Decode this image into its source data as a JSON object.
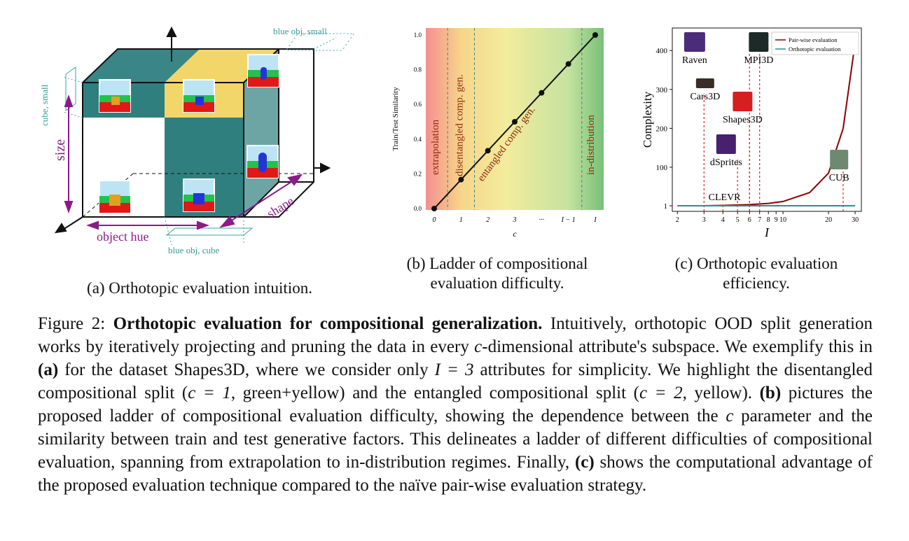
{
  "panel_a": {
    "caption": "(a) Orthotopic evaluation intuition.",
    "labels": {
      "blue_obj_small": "blue obj, small",
      "cube_small": "cube, small",
      "size": "size",
      "object_hue": "object hue",
      "shape": "shape",
      "blue_obj_cube": "blue obj, cube"
    }
  },
  "panel_b": {
    "caption_line1": "(b) Ladder of compositional",
    "caption_line2": "evaluation difficulty.",
    "regions": {
      "extrapolation": "extrapolation",
      "disentangled": "disentangled comp. gen.",
      "entangled": "entangled comp. gen.",
      "in_distribution": "in-distribution"
    }
  },
  "panel_c": {
    "caption_line1": "(c) Orthotopic evaluation",
    "caption_line2": "efficiency.",
    "datasets": [
      "Raven",
      "MPI3D",
      "Cars3D",
      "Shapes3D",
      "dSprites",
      "CLEVR",
      "CUB"
    ]
  },
  "caption": {
    "prefix": "Figure 2: ",
    "title": "Orthotopic evaluation for compositional generalization.",
    "s1": " Intuitively, orthotopic OOD split generation works by iteratively projecting and pruning the data in every ",
    "c1": "c",
    "s2": "-dimensional attribute's subspace. We exemplify this in ",
    "ref_a": "(a)",
    "s3": " for the dataset Shapes3D, where we consider only ",
    "eq1": "I = 3",
    "s4": " attributes for simplicity. We highlight the disentangled compositional split (",
    "eq2": "c = 1",
    "s5": ", green+yellow) and the entangled compositional split (",
    "eq3": "c = 2",
    "s6": ", yellow). ",
    "ref_b": "(b)",
    "s7": " pictures the proposed ladder of compositional evaluation difficulty, showing the dependence between the ",
    "c2": "c",
    "s8": " parameter and the similarity between train and test generative factors. This delineates a ladder of different difficulties of compositional evaluation, spanning from extrapolation to in-distribution regimes. Finally, ",
    "ref_c": "(c)",
    "s9": " shows the computational advantage of the proposed evaluation technique compared to the naïve pair-wise evaluation strategy."
  },
  "chart_data": [
    {
      "id": "ladder",
      "type": "line",
      "xlabel": "c",
      "ylabel": "Train/Test Similarity",
      "x_ticks": [
        "0",
        "1",
        "2",
        "3",
        "···",
        "I − 1",
        "I"
      ],
      "y_ticks": [
        "0.0",
        "0.2",
        "0.4",
        "0.6",
        "0.8",
        "1.0"
      ],
      "ylim": [
        0,
        1
      ],
      "series": [
        {
          "values": [
            0.0,
            0.1667,
            0.3333,
            0.5,
            0.6667,
            0.8333,
            1.0
          ]
        }
      ],
      "background": "gradient red-yellow-green",
      "vlines": [
        0.5,
        1.5,
        5.5
      ]
    },
    {
      "id": "efficiency",
      "type": "line",
      "xlabel": "I",
      "ylabel": "Complexity",
      "x_ticks": [
        "2",
        "3",
        "4",
        "5",
        "6",
        "7",
        "8",
        "9",
        "10",
        "20",
        "30"
      ],
      "y_ticks": [
        "1",
        "100",
        "200",
        "300",
        "400"
      ],
      "legend": "top-right",
      "series": [
        {
          "name": "Pair-wise evaluation",
          "color": "#8b0000",
          "x": [
            2,
            3,
            4,
            5,
            6,
            8,
            10,
            15,
            20,
            25,
            30
          ],
          "y": [
            1,
            1,
            2,
            3,
            4,
            7,
            12,
            35,
            85,
            200,
            420
          ]
        },
        {
          "name": "Orthotopic evaluation",
          "color": "#2a8f8f",
          "x": [
            2,
            30
          ],
          "y": [
            1,
            1
          ]
        }
      ],
      "markers": [
        {
          "label": "Raven",
          "x": 6,
          "y": 420
        },
        {
          "label": "MPI3D",
          "x": 7,
          "y": 410
        },
        {
          "label": "Cars3D",
          "x": 3,
          "y": 290
        },
        {
          "label": "Shapes3D",
          "x": 6,
          "y": 230
        },
        {
          "label": "dSprites",
          "x": 5,
          "y": 120
        },
        {
          "label": "CLEVR",
          "x": 4,
          "y": 1
        },
        {
          "label": "CUB",
          "x": 25,
          "y": 100
        }
      ]
    }
  ]
}
